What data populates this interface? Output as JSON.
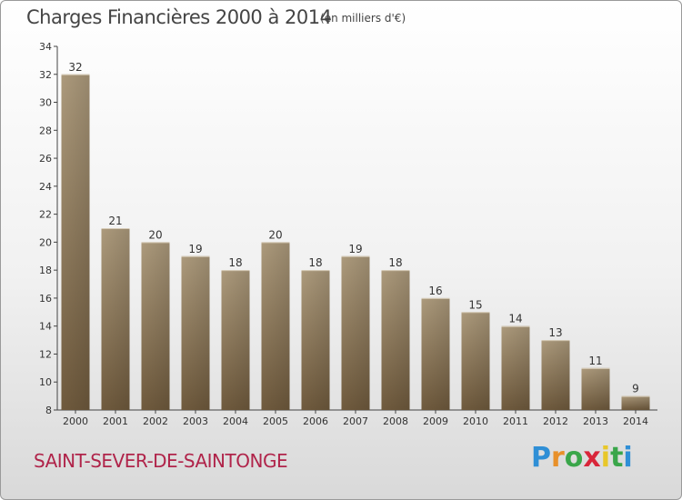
{
  "header": {
    "title": "Charges Financières 2000 à 2014",
    "subtitle": "(en milliers d'€)"
  },
  "footer": {
    "commune": "SAINT-SEVER-DE-SAINTONGE",
    "brand_letters": [
      "P",
      "r",
      "o",
      "x",
      "i",
      "t",
      "i"
    ],
    "brand": "Proxiti"
  },
  "colors": {
    "bar_light": "#ac9a7c",
    "bar_dark": "#6f5a3d",
    "axis": "#444444",
    "commune": "#b0244a"
  },
  "chart_data": {
    "type": "bar",
    "title": "Charges Financières 2000 à 2014",
    "subtitle": "(en milliers d'€)",
    "xlabel": "",
    "ylabel": "",
    "categories": [
      "2000",
      "2001",
      "2002",
      "2003",
      "2004",
      "2005",
      "2006",
      "2007",
      "2008",
      "2009",
      "2010",
      "2011",
      "2012",
      "2013",
      "2014"
    ],
    "values": [
      32,
      21,
      20,
      19,
      18,
      20,
      18,
      19,
      18,
      16,
      15,
      14,
      13,
      11,
      9
    ],
    "ylim": [
      8,
      34
    ],
    "yticks": [
      8,
      10,
      12,
      14,
      16,
      18,
      20,
      22,
      24,
      26,
      28,
      30,
      32,
      34
    ],
    "grid": false,
    "legend": "none"
  }
}
